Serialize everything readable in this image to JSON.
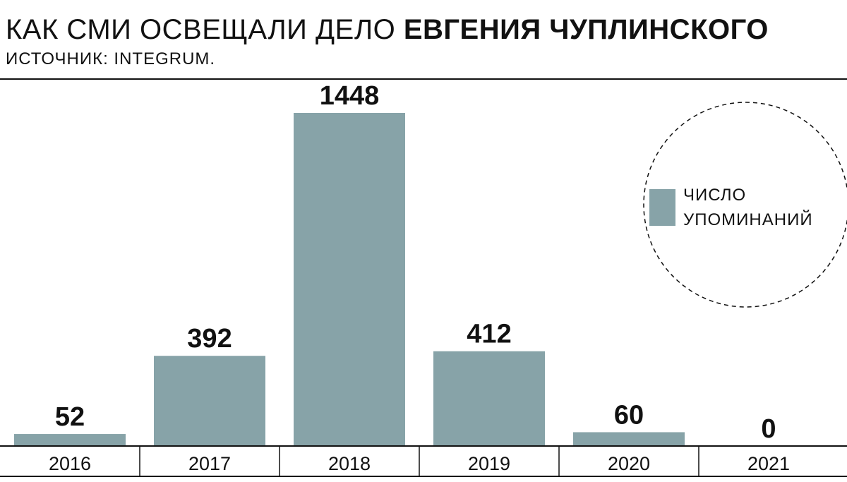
{
  "header": {
    "title_regular": "КАК СМИ ОСВЕЩАЛИ ДЕЛО",
    "title_bold": "ЕВГЕНИЯ ЧУПЛИНСКОГО",
    "subtitle": "ИСТОЧНИК: INTEGRUM."
  },
  "colors": {
    "bar": "#87a3a8",
    "text": "#111111"
  },
  "chart_data": {
    "type": "bar",
    "categories": [
      "2016",
      "2017",
      "2018",
      "2019",
      "2020",
      "2021"
    ],
    "values": [
      52,
      392,
      1448,
      412,
      60,
      0
    ],
    "data_labels": [
      "52",
      "392",
      "1448",
      "412",
      "60",
      "0"
    ],
    "title": "",
    "xlabel": "",
    "ylabel": "",
    "ylim": [
      0,
      1448
    ],
    "grid": false,
    "legend": {
      "placement": "top-right",
      "lines": [
        "ЧИСЛО",
        "УПОМИНАНИЙ"
      ],
      "marker": "square"
    }
  }
}
